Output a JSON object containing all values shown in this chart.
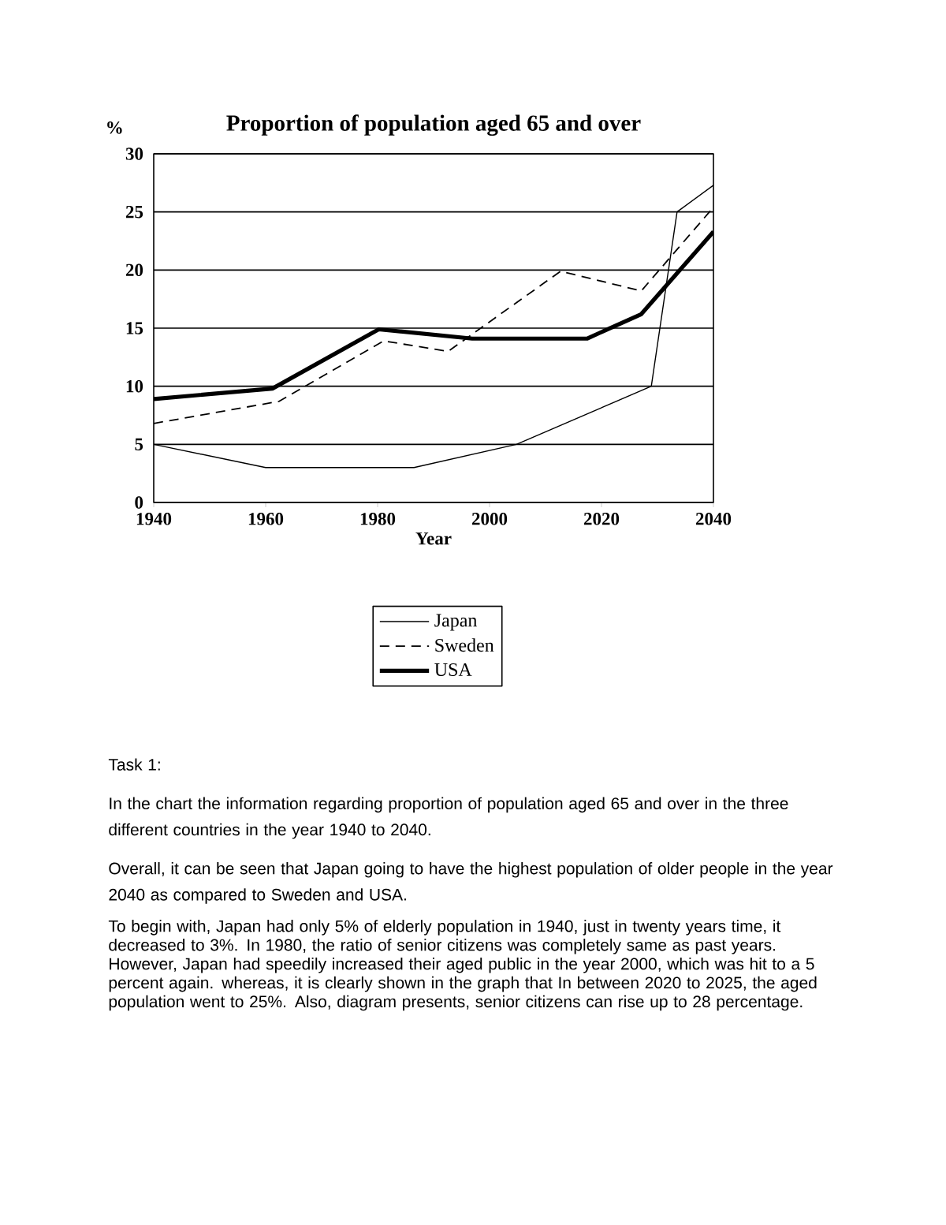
{
  "chart_data": {
    "type": "line",
    "title": "Proportion of population aged 65 and over",
    "xlabel": "Year",
    "ylabel": "%",
    "xlim": [
      1940,
      2040
    ],
    "xticks": [
      1940,
      1960,
      1980,
      2000,
      2020,
      2040
    ],
    "ylim": [
      0,
      30
    ],
    "yticks": [
      0,
      5,
      10,
      15,
      20,
      25,
      30
    ],
    "grid": "y",
    "legend": "bottom",
    "marker": "none",
    "series": [
      {
        "name": "Japan",
        "color": "#000000",
        "line_style": "solid",
        "x": [
          1940,
          1960,
          1986.5,
          2004.8,
          2028.9,
          2033.5,
          2040
        ],
        "values": [
          5,
          3,
          3,
          5,
          10,
          25,
          27.3
        ]
      },
      {
        "name": "Sweden",
        "color": "#000000",
        "line_style": "dashed",
        "x": [
          1940,
          1962.4,
          1981.1,
          1992.6,
          2012.7,
          2027.1,
          2040
        ],
        "values": [
          6.8,
          8.7,
          13.9,
          13,
          19.9,
          18.2,
          25.4
        ]
      },
      {
        "name": "USA",
        "color": "#000000",
        "line_style": "solid",
        "x": [
          1940,
          1961.2,
          1980.2,
          1996.9,
          2017.4,
          2027.1,
          2040
        ],
        "values": [
          8.9,
          9.8,
          14.9,
          14.1,
          14.1,
          16.2,
          23.3
        ]
      }
    ],
    "annotations": [
      "Task 1:",
      "In the chart the information regarding  proportion of population aged 65 and over in the three different countries in the year 1940 to 2040.",
      "Overall, it can be seen that Japan going to have the highest population of older people in the year 2040 as compared to Sweden and USA.",
      "To begin with, Japan had only 5% of elderly population in 1940, just in twenty years time, it decreased to 3%. In 1980, the ratio of senior citizens was completely same as past years. However, Japan had speedily increased their aged public in the year 2000, which was hit to a 5 percent again. whereas, it is clearly shown in the graph that In between 2020 to 2025, the aged population went to 25%. Also, diagram presents, senior citizens can rise up to 28 percentage."
    ]
  }
}
